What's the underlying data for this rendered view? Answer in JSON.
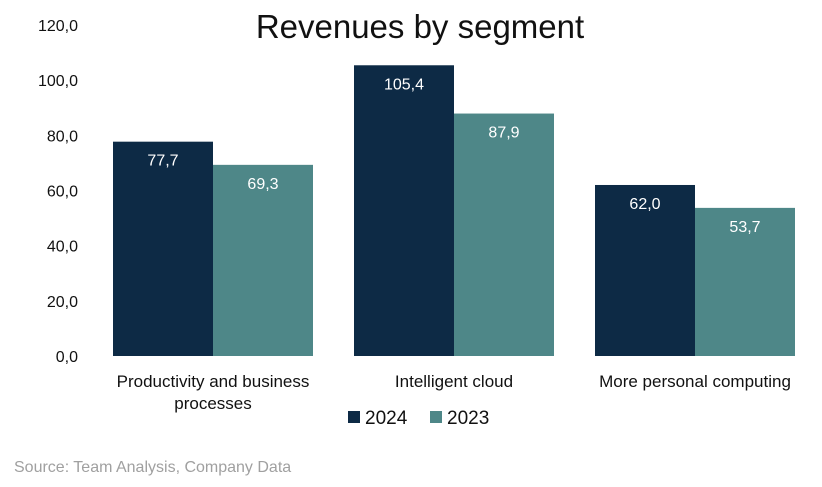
{
  "chart_data": {
    "type": "bar",
    "title": "Revenues by segment",
    "categories": [
      [
        "Productivity and business",
        "processes"
      ],
      [
        "Intelligent cloud"
      ],
      [
        "More personal computing"
      ]
    ],
    "series": [
      {
        "name": "2024",
        "color": "#0d2a45",
        "values": [
          77.7,
          105.4,
          62.0
        ],
        "labels": [
          "77,7",
          "105,4",
          "62,0"
        ]
      },
      {
        "name": "2023",
        "color": "#4e8788",
        "values": [
          69.3,
          87.9,
          53.7
        ],
        "labels": [
          "69,3",
          "87,9",
          "53,7"
        ]
      }
    ],
    "ylim": [
      0,
      120
    ],
    "yticks": [
      "0,0",
      "20,0",
      "40,0",
      "60,0",
      "80,0",
      "100,0",
      "120,0"
    ],
    "ytick_values": [
      0,
      20,
      40,
      60,
      80,
      100,
      120
    ],
    "grid": false,
    "legend": "bottom-center"
  },
  "source": "Source: Team Analysis,  Company Data"
}
